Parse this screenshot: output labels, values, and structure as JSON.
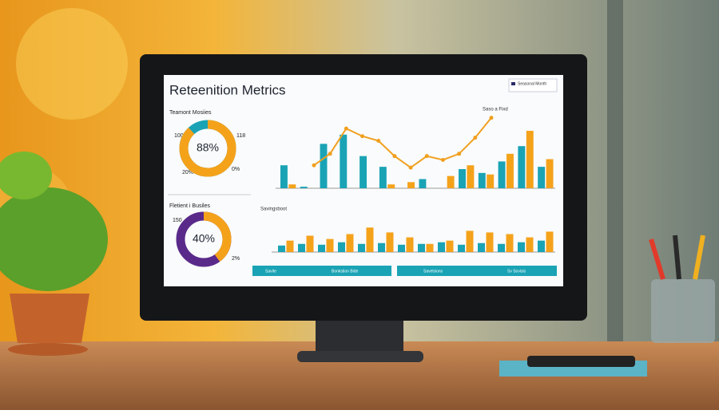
{
  "screen": {
    "title": "Reteenition Metrics",
    "legend": "Seasonal Month",
    "donut_top": {
      "caption": "Teamont Mosiies",
      "value": 88,
      "label": "88%",
      "corner_labels": [
        "100",
        "118",
        "20%",
        "0%"
      ]
    },
    "donut_bottom": {
      "caption": "Fletient i Busiles",
      "value": 40,
      "label": "40%",
      "corner_labels": [
        "150",
        "2%"
      ]
    },
    "main_chart": {
      "type": "bar",
      "annotation": "Saso a Fixd",
      "ylim": [
        0,
        100
      ],
      "series": [
        {
          "name": "teal",
          "color": "#1aa3b5",
          "values": [
            30,
            2,
            58,
            70,
            42,
            28,
            0,
            12,
            0,
            25,
            20,
            35,
            55,
            28
          ]
        },
        {
          "name": "orange",
          "color": "#f5a21b",
          "values": [
            5,
            0,
            0,
            0,
            0,
            5,
            8,
            0,
            16,
            30,
            18,
            45,
            75,
            38
          ]
        }
      ],
      "line": {
        "color": "#f0a020",
        "values": [
          30,
          45,
          78,
          68,
          62,
          42,
          27,
          42,
          37,
          45,
          66,
          92
        ]
      }
    },
    "second_chart": {
      "type": "bar",
      "caption": "Savingsboot",
      "ylim": [
        0,
        40
      ],
      "series": [
        {
          "name": "teal",
          "color": "#1aa3b5",
          "values": [
            8,
            10,
            9,
            12,
            10,
            11,
            9,
            10,
            12,
            9,
            11,
            10,
            12,
            14
          ]
        },
        {
          "name": "orange",
          "color": "#f5a21b",
          "values": [
            14,
            20,
            16,
            22,
            30,
            24,
            18,
            10,
            14,
            26,
            24,
            22,
            18,
            25
          ]
        }
      ]
    },
    "footer": [
      "Savite",
      "Bonkstion Bide",
      "Savelsions",
      "Sv Sovisis"
    ]
  }
}
